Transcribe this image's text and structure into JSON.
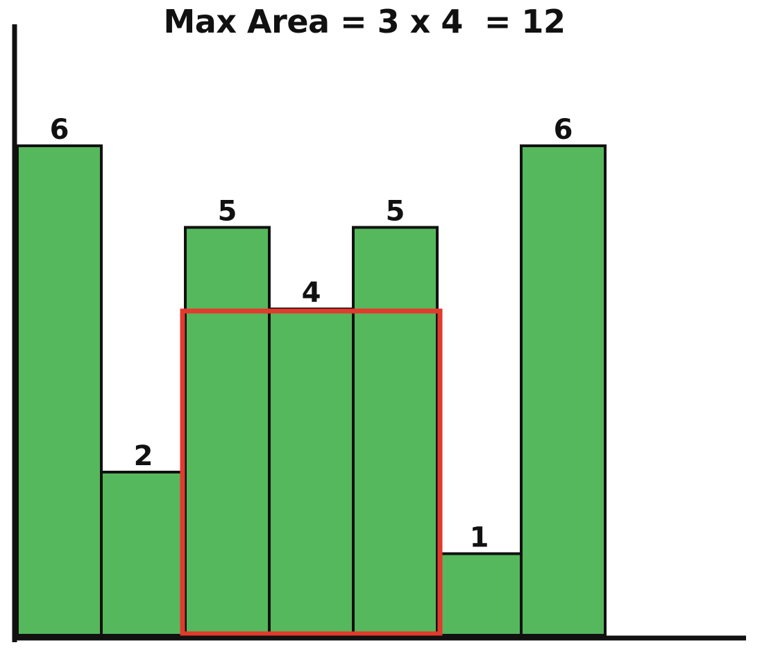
{
  "chart_data": {
    "type": "bar",
    "title": "Max Area = 3 x 4  = 12",
    "categories": [
      "",
      "",
      "",
      "",
      "",
      "",
      ""
    ],
    "values": [
      6,
      2,
      5,
      4,
      5,
      1,
      6
    ],
    "ylim": [
      0,
      6
    ],
    "grid": false,
    "legend": "none",
    "highlight": {
      "start_index": 2,
      "end_index": 4,
      "height": 4
    }
  },
  "colors": {
    "bar_fill": "#55b85c",
    "bar_stroke": "#111111",
    "highlight_stroke": "#e23a2c",
    "axis": "#111111"
  }
}
